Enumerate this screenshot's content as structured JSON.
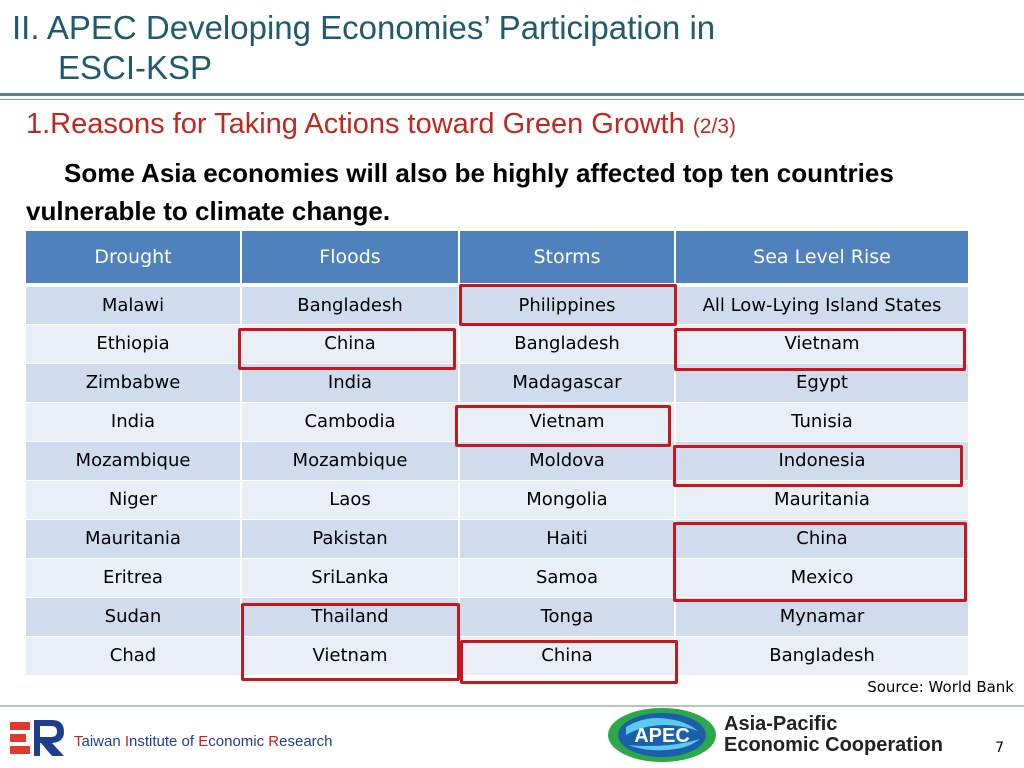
{
  "slide": {
    "title_line1": "II. APEC Developing Economies’ Participation in",
    "title_line2": "ESCI-KSP",
    "subtitle": "1.Reasons for Taking Actions toward Green Growth",
    "subtitle_suffix": "(2/3)",
    "intro": "Some Asia economies will also be highly affected top ten countries vulnerable to climate change."
  },
  "table": {
    "headers": [
      "Drought",
      "Floods",
      "Storms",
      "Sea Level Rise"
    ],
    "rows": [
      [
        "Malawi",
        "Bangladesh",
        "Philippines",
        "All Low-Lying Island States"
      ],
      [
        "Ethiopia",
        "China",
        "Bangladesh",
        "Vietnam"
      ],
      [
        "Zimbabwe",
        "India",
        "Madagascar",
        "Egypt"
      ],
      [
        "India",
        "Cambodia",
        "Vietnam",
        "Tunisia"
      ],
      [
        "Mozambique",
        "Mozambique",
        "Moldova",
        "Indonesia"
      ],
      [
        "Niger",
        "Laos",
        "Mongolia",
        "Mauritania"
      ],
      [
        "Mauritania",
        "Pakistan",
        "Haiti",
        "China"
      ],
      [
        "Eritrea",
        "SriLanka",
        "Samoa",
        "Mexico"
      ],
      [
        "Sudan",
        "Thailand",
        "Tonga",
        "Mynamar"
      ],
      [
        "Chad",
        "Vietnam",
        "China",
        "Bangladesh"
      ]
    ],
    "header_color": "#4f81bd",
    "highlight_color": "#c8161d"
  },
  "source": "Source: World Bank",
  "footer": {
    "tier_name": {
      "t1": "T",
      "r1": "aiwan ",
      "t2": "I",
      "r2": "nstitute of ",
      "t3": "E",
      "r3": "conomic ",
      "t4": "R",
      "r4": "esearch"
    },
    "apec_badge": "APEC",
    "apec_line1": "Asia-Pacific",
    "apec_line2": "Economic Cooperation",
    "page_number": "7"
  }
}
